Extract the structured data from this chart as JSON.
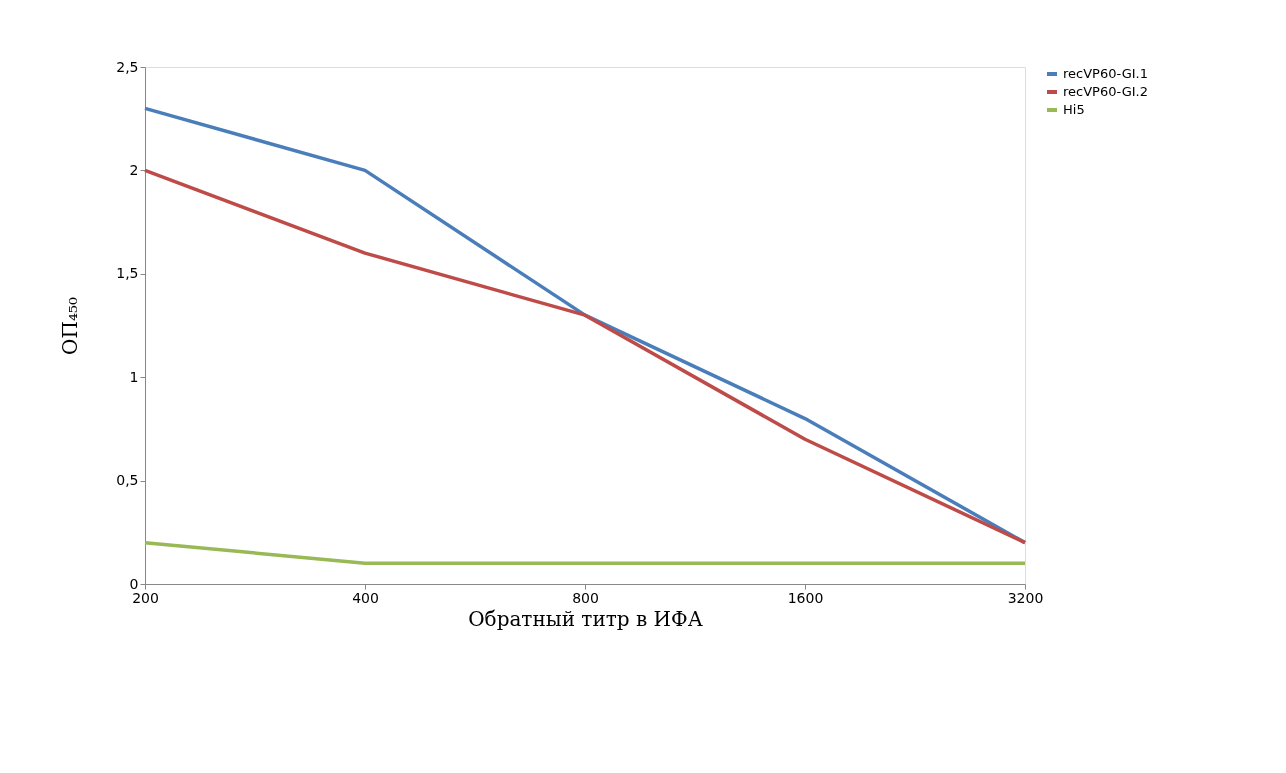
{
  "chart_data": {
    "type": "line",
    "xlabel": "Обратный титр в ИФА",
    "ylabel": "ОП₄₅₀",
    "categories": [
      "200",
      "400",
      "800",
      "1600",
      "3200"
    ],
    "series": [
      {
        "name": "recVP60-GI.1",
        "color": "#4a7ebb",
        "values": [
          2.3,
          2.0,
          1.3,
          0.8,
          0.2
        ]
      },
      {
        "name": "recVP60-GI.2",
        "color": "#be4b48",
        "values": [
          2.0,
          1.6,
          1.3,
          0.7,
          0.2
        ]
      },
      {
        "name": "Hi5",
        "color": "#98b954",
        "values": [
          0.2,
          0.1,
          0.1,
          0.1,
          0.1
        ]
      }
    ],
    "ylim": [
      0,
      2.5
    ],
    "yticks": [
      {
        "value": 0,
        "label": "0"
      },
      {
        "value": 0.5,
        "label": "0,5"
      },
      {
        "value": 1,
        "label": "1"
      },
      {
        "value": 1.5,
        "label": "1,5"
      },
      {
        "value": 2,
        "label": "2"
      },
      {
        "value": 2.5,
        "label": "2,5"
      }
    ],
    "grid": false,
    "legend": "right",
    "marker": "none",
    "line_style": "solid"
  }
}
